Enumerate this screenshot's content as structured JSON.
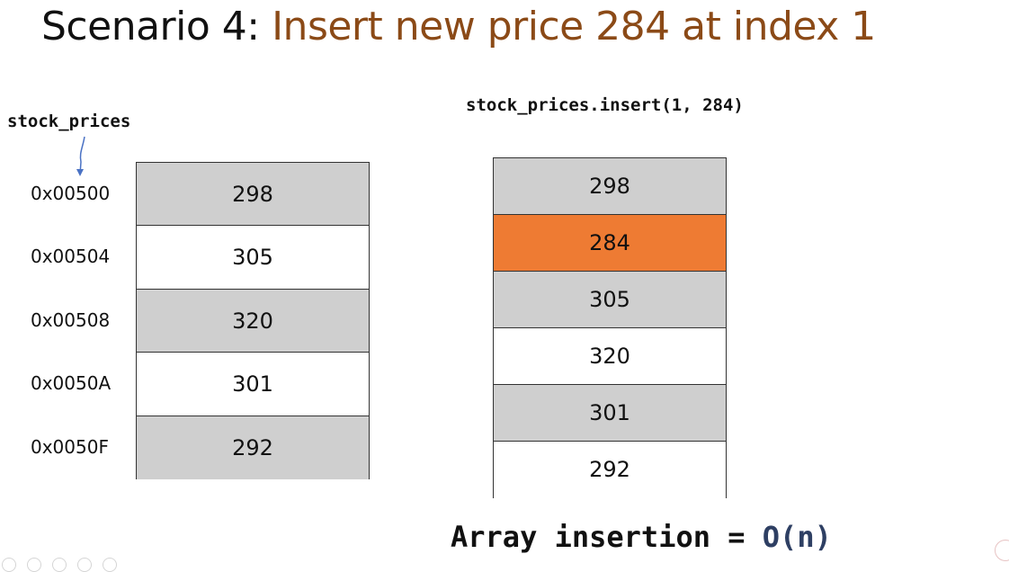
{
  "title": {
    "prefix": "Scenario 4: ",
    "highlight": "Insert new price 284 at index 1"
  },
  "variable_label": "stock_prices",
  "code": "stock_prices.insert(1, 284)",
  "before": {
    "rows": [
      {
        "address": "0x00500",
        "value": "298",
        "shade": "shaded"
      },
      {
        "address": "0x00504",
        "value": "305",
        "shade": "plain"
      },
      {
        "address": "0x00508",
        "value": "320",
        "shade": "shaded"
      },
      {
        "address": "0x0050A",
        "value": "301",
        "shade": "plain"
      },
      {
        "address": "0x0050F",
        "value": "292",
        "shade": "shaded"
      }
    ]
  },
  "after": {
    "rows": [
      {
        "value": "298",
        "shade": "shaded"
      },
      {
        "value": "284",
        "shade": "inserted"
      },
      {
        "value": "305",
        "shade": "shaded"
      },
      {
        "value": "320",
        "shade": "plain"
      },
      {
        "value": "301",
        "shade": "shaded"
      },
      {
        "value": "292",
        "shade": "plain"
      }
    ]
  },
  "complexity": {
    "label": "Array insertion = ",
    "value": "O(n)"
  },
  "colors": {
    "title_accent": "#8B4A17",
    "inserted_cell": "#EE7B33",
    "shaded_cell": "#CFCFCF",
    "big_o": "#2E3F63",
    "arrow": "#4A72C4"
  }
}
